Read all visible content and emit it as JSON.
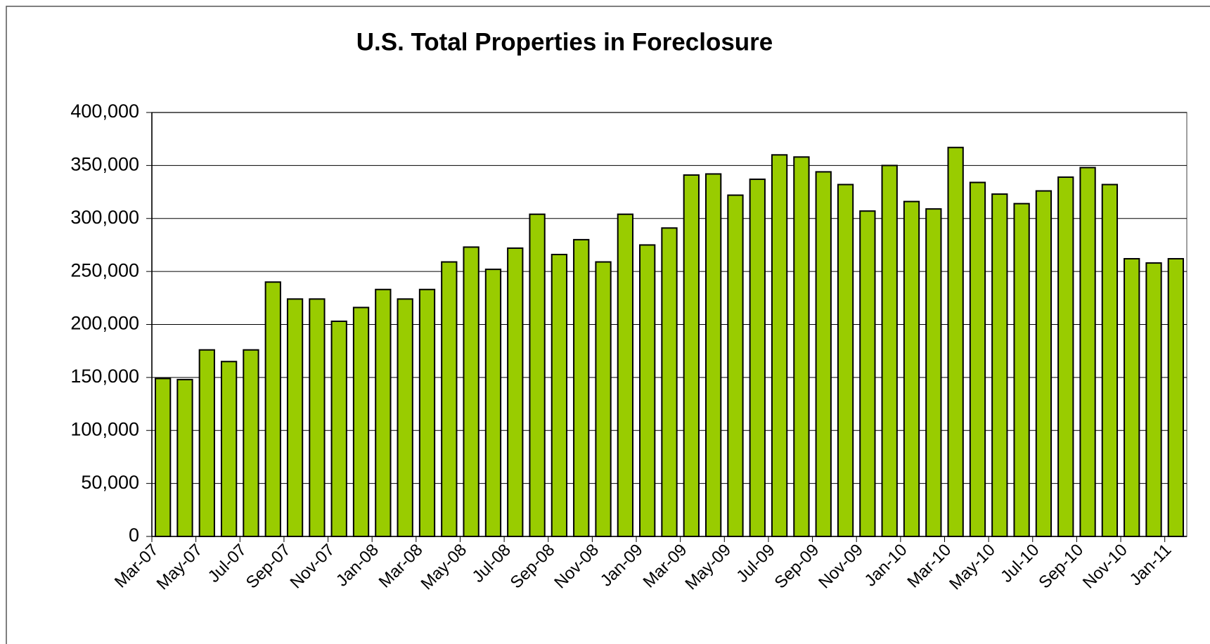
{
  "chart_data": {
    "type": "bar",
    "title": "U.S. Total Properties in Foreclosure",
    "categories": [
      "Mar-07",
      null,
      "May-07",
      null,
      "Jul-07",
      null,
      "Sep-07",
      null,
      "Nov-07",
      null,
      "Jan-08",
      null,
      "Mar-08",
      null,
      "May-08",
      null,
      "Jul-08",
      null,
      "Sep-08",
      null,
      "Nov-08",
      null,
      "Jan-09",
      null,
      "Mar-09",
      null,
      "May-09",
      null,
      "Jul-09",
      null,
      "Sep-09",
      null,
      "Nov-09",
      null,
      "Jan-10",
      null,
      "Mar-10",
      null,
      "May-10",
      null,
      "Jul-10",
      null,
      "Sep-10",
      null,
      "Nov-10",
      null,
      "Jan-11"
    ],
    "values": [
      149000,
      148000,
      176000,
      165000,
      176000,
      240000,
      224000,
      224000,
      203000,
      216000,
      233000,
      224000,
      233000,
      259000,
      273000,
      252000,
      272000,
      304000,
      266000,
      280000,
      259000,
      304000,
      275000,
      291000,
      341000,
      342000,
      322000,
      337000,
      360000,
      358000,
      344000,
      332000,
      307000,
      350000,
      316000,
      309000,
      367000,
      334000,
      323000,
      314000,
      326000,
      339000,
      348000,
      332000,
      262000,
      258000,
      262000
    ],
    "color": "#99cc00",
    "ylim": [
      0,
      400000
    ],
    "yticks": [
      0,
      {
        "value": 50000,
        "label": "50,000"
      },
      {
        "value": 100000,
        "label": "100,000"
      },
      {
        "value": 150000,
        "label": "150,000"
      },
      {
        "value": 200000,
        "label": "200,000"
      },
      {
        "value": 250000,
        "label": "250,000"
      },
      {
        "value": 300000,
        "label": "300,000"
      },
      {
        "value": 350000,
        "label": "350,000"
      },
      {
        "value": 400000,
        "label": "400,000"
      }
    ],
    "grid": true
  }
}
